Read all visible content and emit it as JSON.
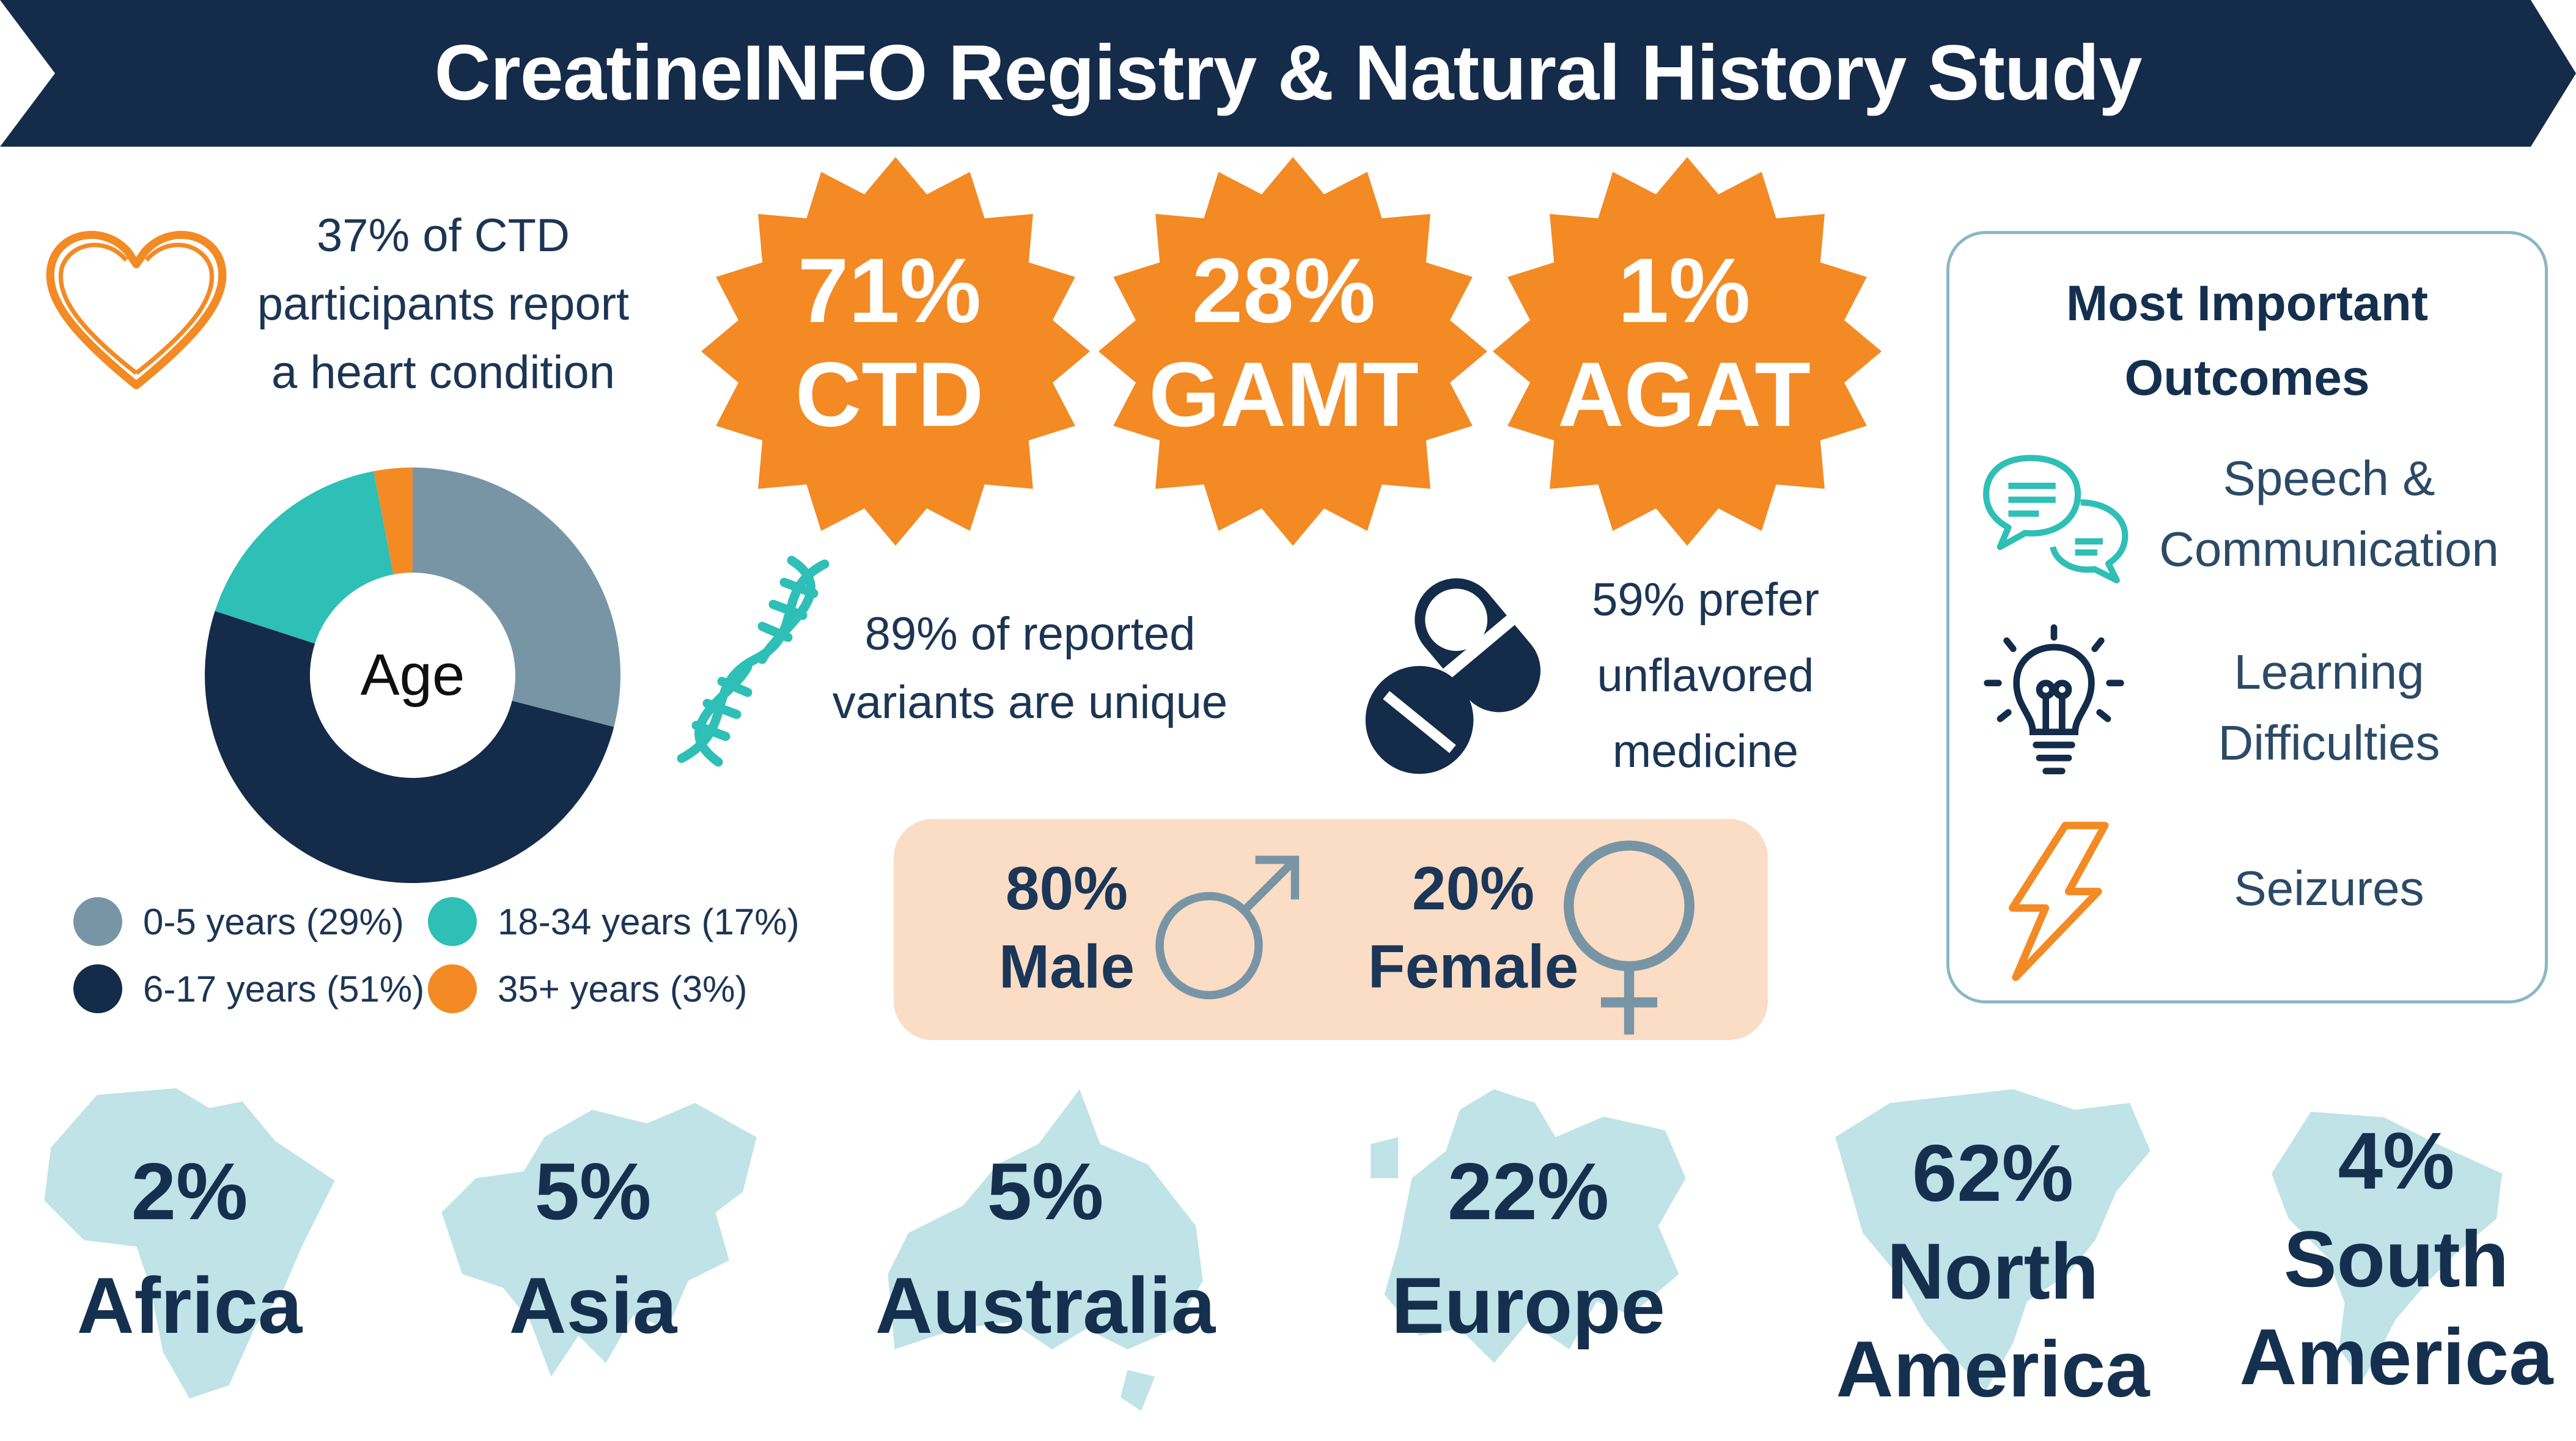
{
  "title": "CreatineINFO Registry & Natural History Study",
  "colors": {
    "navy": "#142b4a",
    "orange": "#f38a24",
    "teal": "#2ebfb6",
    "slate": "#7895a6",
    "peach": "#fbdcc4",
    "map": "#bfe3e6"
  },
  "heart_stat": {
    "icon": "heart-outline-icon",
    "lines": [
      "37% of CTD",
      "participants report",
      "a heart condition"
    ]
  },
  "deficiencies": [
    {
      "pct": "71%",
      "label": "CTD"
    },
    {
      "pct": "28%",
      "label": "GAMT"
    },
    {
      "pct": "1%",
      "label": "AGAT"
    }
  ],
  "variants_stat": {
    "icon": "dna-icon",
    "lines": [
      "89% of reported",
      "variants are unique"
    ]
  },
  "medicine_stat": {
    "icon": "capsule-pill-icon",
    "lines": [
      "59% prefer",
      "unflavored",
      "medicine"
    ]
  },
  "age_chart": {
    "center_label": "Age",
    "slices": [
      {
        "label": "0-5 years (29%)",
        "value": 29,
        "color": "#7895a6"
      },
      {
        "label": "6-17 years (51%)",
        "value": 51,
        "color": "#142b4a"
      },
      {
        "label": "18-34 years (17%)",
        "value": 17,
        "color": "#2ebfb6"
      },
      {
        "label": "35+ years (3%)",
        "value": 3,
        "color": "#f38a24"
      }
    ]
  },
  "gender": [
    {
      "pct": "80%",
      "label": "Male",
      "icon": "male-symbol-icon"
    },
    {
      "pct": "20%",
      "label": "Female",
      "icon": "female-symbol-icon"
    }
  ],
  "outcomes": {
    "title_lines": [
      "Most Important",
      "Outcomes"
    ],
    "items": [
      {
        "icon": "speech-bubbles-icon",
        "lines": [
          "Speech &",
          "Communication"
        ]
      },
      {
        "icon": "lightbulb-icon",
        "lines": [
          "Learning",
          "Difficulties"
        ]
      },
      {
        "icon": "lightning-bolt-icon",
        "lines": [
          "Seizures"
        ]
      }
    ]
  },
  "regions": [
    {
      "pct": "2%",
      "name_lines": [
        "Africa"
      ],
      "icon": "africa-map-icon"
    },
    {
      "pct": "5%",
      "name_lines": [
        "Asia"
      ],
      "icon": "asia-map-icon"
    },
    {
      "pct": "5%",
      "name_lines": [
        "Australia"
      ],
      "icon": "australia-map-icon"
    },
    {
      "pct": "22%",
      "name_lines": [
        "Europe"
      ],
      "icon": "europe-map-icon"
    },
    {
      "pct": "62%",
      "name_lines": [
        "North",
        "America"
      ],
      "icon": "north-america-map-icon"
    },
    {
      "pct": "4%",
      "name_lines": [
        "South",
        "America"
      ],
      "icon": "south-america-map-icon"
    }
  ]
}
